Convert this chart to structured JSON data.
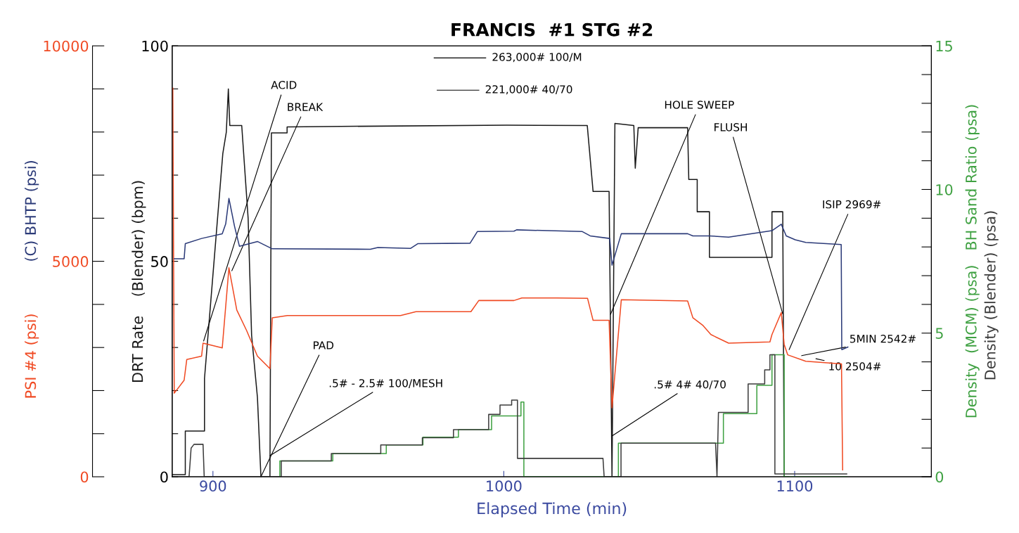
{
  "chart_data": {
    "type": "line",
    "title": "FRANCIS  #1 STG #2",
    "xlabel": "Elapsed Time (min)",
    "xlim": [
      886,
      1147
    ],
    "xticks": [
      900,
      1000,
      1100
    ],
    "ylim": [
      0,
      100
    ],
    "yticks": [
      0,
      {
        "value": 10,
        "label": null
      },
      {
        "value": 20,
        "label": null
      },
      {
        "value": 30,
        "label": null
      },
      {
        "value": 40,
        "label": null
      },
      50,
      {
        "value": 60,
        "label": null
      },
      {
        "value": 70,
        "label": null
      },
      {
        "value": 80,
        "label": null
      },
      {
        "value": 90,
        "label": null
      },
      100
    ],
    "y2lim": [
      0,
      10000
    ],
    "y2ticks": [
      0,
      {
        "value": 1000,
        "label": null
      },
      {
        "value": 2000,
        "label": null
      },
      {
        "value": 3000,
        "label": null
      },
      {
        "value": 4000,
        "label": null
      },
      5000,
      {
        "value": 6000,
        "label": null
      },
      {
        "value": 7000,
        "label": null
      },
      {
        "value": 8000,
        "label": null
      },
      {
        "value": 9000,
        "label": null
      },
      10000
    ],
    "y3lim": [
      0,
      15
    ],
    "y3ticks": [
      0,
      {
        "value": 1,
        "label": null
      },
      {
        "value": 2,
        "label": null
      },
      {
        "value": 3,
        "label": null
      },
      {
        "value": 4,
        "label": null
      },
      5,
      {
        "value": 6,
        "label": null
      },
      {
        "value": 7,
        "label": null
      },
      {
        "value": 8,
        "label": null
      },
      {
        "value": 9,
        "label": null
      },
      10,
      {
        "value": 11,
        "label": null
      },
      {
        "value": 12,
        "label": null
      },
      {
        "value": 13,
        "label": null
      },
      {
        "value": 14,
        "label": null
      },
      15
    ],
    "grid": false,
    "legend": false,
    "series": [
      {
        "name": "PSI #4 (psi)",
        "color": "#f04a23",
        "axis": "y2",
        "x": [
          886.2,
          886.7,
          890.1,
          891.0,
          896.1,
          896.6,
          903.2,
          905.5,
          908.2,
          911.6,
          915.3,
          919.6,
          920.4,
          925.6,
          964.5,
          969.8,
          988.7,
          991.4,
          1003.5,
          1006.2,
          1018.1,
          1028.8,
          1030.7,
          1036.2,
          1037.2,
          1040.4,
          1063.2,
          1065.0,
          1068.5,
          1071.2,
          1077.3,
          1091.5,
          1092.2,
          1095.4,
          1096.4,
          1097.6,
          1103.8,
          1116.1,
          1116.5
        ],
        "values": [
          9020,
          1940,
          2240,
          2720,
          2800,
          3100,
          2990,
          4850,
          3870,
          3390,
          2800,
          2510,
          3690,
          3740,
          3740,
          3830,
          3830,
          4090,
          4090,
          4150,
          4150,
          4140,
          3630,
          3630,
          1600,
          4110,
          4080,
          3690,
          3510,
          3300,
          3100,
          3130,
          3300,
          3810,
          3070,
          2830,
          2680,
          2620,
          160
        ]
      },
      {
        "name": "(C) BHTP (psi)",
        "color": "#2b3a78",
        "axis": "y2",
        "x": [
          886.7,
          890.1,
          890.5,
          896.1,
          903.2,
          904.4,
          905.5,
          907.4,
          909.1,
          915.3,
          920.4,
          954.1,
          956.7,
          968.0,
          970.5,
          988.4,
          990.9,
          1003.5,
          1004.4,
          1027.0,
          1029.7,
          1036.4,
          1037.2,
          1040.4,
          1063.2,
          1065.0,
          1070.7,
          1077.3,
          1092.2,
          1095.4,
          1097.1,
          1100.2,
          1103.8,
          1116.0,
          1116.2,
          1118.3
        ],
        "values": [
          5060,
          5060,
          5410,
          5530,
          5640,
          5870,
          6460,
          5820,
          5350,
          5460,
          5290,
          5280,
          5320,
          5300,
          5410,
          5420,
          5690,
          5700,
          5730,
          5690,
          5590,
          5530,
          4910,
          5640,
          5640,
          5590,
          5590,
          5560,
          5710,
          5860,
          5590,
          5500,
          5440,
          5390,
          2950,
          3010
        ]
      },
      {
        "name": "DRT Rate    (Blender) (bpm)",
        "color": "#1a1a1a",
        "axis": "y",
        "x": [
          886,
          890.5,
          890.5,
          897.1,
          897.1,
          903.4,
          904.6,
          905.3,
          905.8,
          909.9,
          912.1,
          913.3,
          915.3,
          916.5,
          919.6,
          920.1,
          925.5,
          925.5,
          1001,
          1028.7,
          1030.7,
          1036.2,
          1037.2,
          1038.2,
          1044.7,
          1045.2,
          1046.2,
          1063.2,
          1063.6,
          1066.5,
          1066.5,
          1070.7,
          1070.7,
          1092.2,
          1092.2,
          1095.9,
          1096.4,
          1098
        ],
        "values": [
          0.5,
          0.5,
          10.6,
          10.6,
          22.8,
          75,
          80,
          90,
          81.5,
          81.5,
          60,
          32.8,
          18.4,
          0,
          0,
          79.8,
          79.8,
          81.2,
          81.6,
          81.5,
          66.2,
          66.2,
          0,
          82,
          81.5,
          71.6,
          81,
          81,
          69,
          69,
          61.5,
          61.5,
          50.9,
          50.9,
          61.5,
          61.5,
          0,
          0
        ]
      },
      {
        "name": "Density  (MCM) (psa)   BH Sand Ratio (psa)",
        "color": "#3fa142",
        "axis": "y3",
        "x": [
          923.0,
          923.0,
          941.2,
          941.2,
          959.6,
          959.6,
          972.2,
          972.2,
          984.4,
          984.4,
          995.8,
          995.8,
          1005.9,
          1005.9,
          1006.9,
          1006.9,
          1039.4,
          1039.4,
          1075.5,
          1075.5,
          1087.0,
          1087.0,
          1092.2,
          1092.2,
          1096.4,
          1096.4,
          1118
        ],
        "values": [
          0,
          0.55,
          0.55,
          0.81,
          0.81,
          1.11,
          1.11,
          1.38,
          1.38,
          1.64,
          1.64,
          2.12,
          2.12,
          2.6,
          2.6,
          0,
          0,
          1.17,
          1.17,
          2.2,
          2.2,
          3.18,
          3.18,
          4.25,
          4.25,
          0,
          0
        ]
      },
      {
        "name": "Density (Blender) (psa)",
        "color": "#3c3c3c",
        "axis": "y3",
        "x": [
          886,
          891.8,
          892.5,
          893.5,
          896.6,
          897,
          923.5,
          923.5,
          940.7,
          940.7,
          957.7,
          957.7,
          972.0,
          972.0,
          982.7,
          982.7,
          994.8,
          994.8,
          998.7,
          998.7,
          1002.7,
          1002.7,
          1004.7,
          1004.7,
          1034.1,
          1034.5,
          1040.3,
          1040.3,
          1072.8,
          1073.3,
          1073.8,
          1084.0,
          1084.0,
          1089.7,
          1089.7,
          1091.5,
          1091.5,
          1093.2,
          1093.2,
          1117.9
        ],
        "values": [
          0,
          0,
          1.0,
          1.13,
          1.13,
          0,
          0,
          0.55,
          0.55,
          0.81,
          0.81,
          1.11,
          1.11,
          1.36,
          1.36,
          1.64,
          1.64,
          2.17,
          2.17,
          2.5,
          2.5,
          2.67,
          2.67,
          0.64,
          0.64,
          0,
          0,
          1.17,
          1.17,
          0,
          2.24,
          2.24,
          3.23,
          3.23,
          3.72,
          3.72,
          4.25,
          4.25,
          0.1,
          0.1
        ]
      }
    ],
    "annotations": [
      "263,000# 100/M",
      "221,000# 40/70",
      {
        "text": "ACID",
        "x": 896.8,
        "y": 31.5
      },
      {
        "text": "BREAK",
        "x": 906.5,
        "y": 47.8
      },
      {
        "text": "PAD",
        "x": 916.5,
        "y": 0
      },
      {
        "text": ".5# - 2.5# 100/MESH",
        "x": 919.6,
        "y": 4.9
      },
      {
        "text": "HOLE SWEEP",
        "x": 1036.7,
        "y": 37.7
      },
      {
        "text": ".5# 4# 40/70",
        "x": 1037.3,
        "y": 9.5
      },
      {
        "text": "FLUSH",
        "x": 1095.9,
        "y": 37.8
      },
      {
        "text": "ISIP 2969#",
        "x": 1098.1,
        "y": 29.5
      },
      {
        "text": "5MIN 2542#",
        "x": 1102.4,
        "y": 28.1
      },
      {
        "text": "10 2504#",
        "x": 1107.3,
        "y": 27.4
      }
    ]
  }
}
